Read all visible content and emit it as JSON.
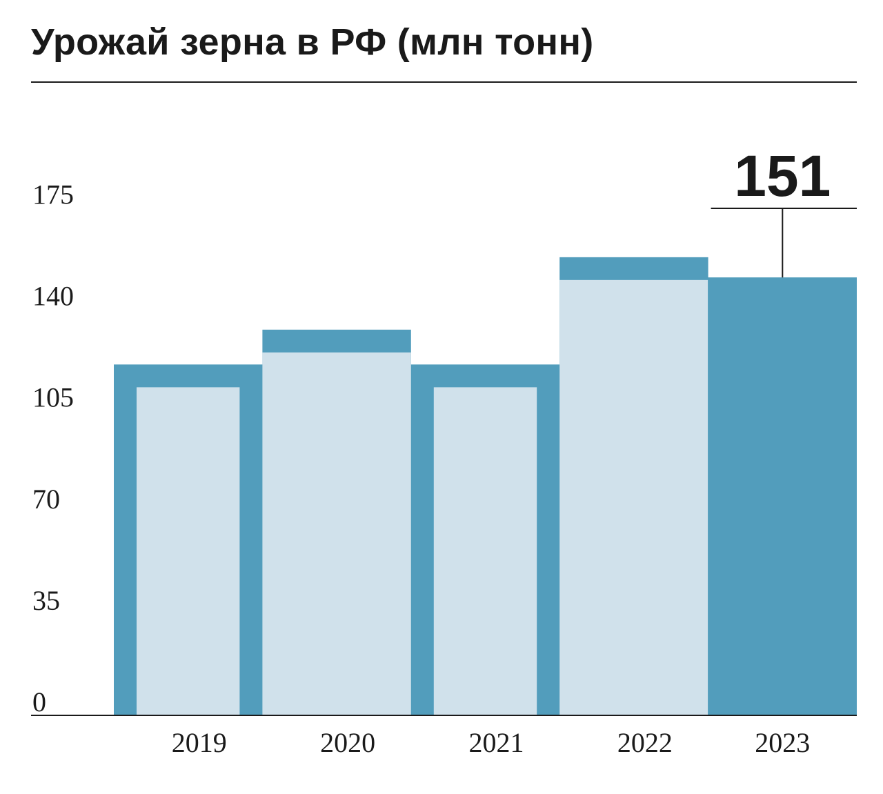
{
  "chart_data": {
    "type": "bar",
    "title": "Урожай зерна в РФ (млн тонн)",
    "categories": [
      "2019",
      "2020",
      "2021",
      "2022",
      "2023"
    ],
    "values": [
      121,
      133,
      121,
      158,
      151
    ],
    "highlight": {
      "category": "2023",
      "label": "151"
    },
    "yticks": [
      "0",
      "35",
      "70",
      "105",
      "140",
      "175"
    ],
    "ylim": [
      0,
      175
    ],
    "xlabel": "",
    "ylabel": "",
    "grid": false,
    "colors": {
      "outline": "#529dbc",
      "fill": "#d0e1eb",
      "highlight": "#529dbc",
      "text": "#1a1a1a"
    }
  }
}
